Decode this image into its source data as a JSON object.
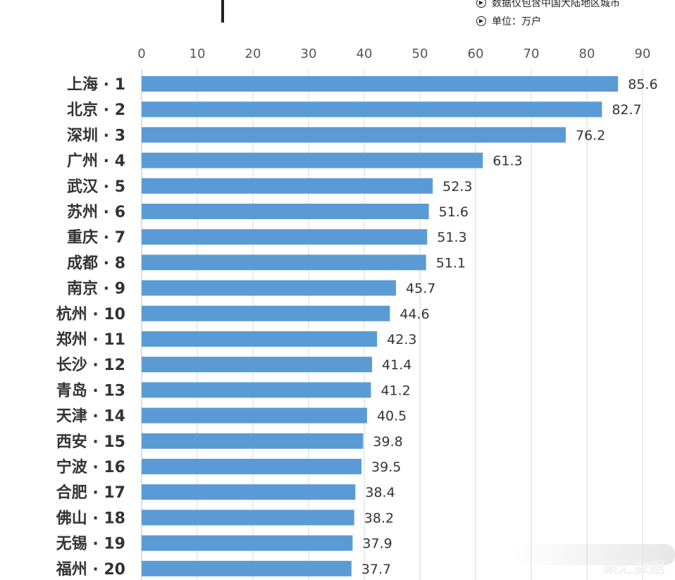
{
  "header": {
    "notes": [
      "数据仅包含中国大陆地区城市",
      "单位：万户"
    ],
    "bullet_icon": "chevron-right-circle-icon"
  },
  "watermark": {
    "text": "聚汇数据"
  },
  "chart_data": {
    "type": "bar",
    "orientation": "horizontal",
    "title": "",
    "xlabel": "",
    "ylabel": "",
    "xlim": [
      0,
      90
    ],
    "xticks": [
      0,
      10,
      20,
      30,
      40,
      50,
      60,
      70,
      80,
      90
    ],
    "grid": true,
    "axis_position": "top",
    "bar_color": "#5B9BD5",
    "categories": [
      "上海 · 1",
      "北京 · 2",
      "深圳 · 3",
      "广州 · 4",
      "武汉 · 5",
      "苏州 · 6",
      "重庆 · 7",
      "成都 · 8",
      "南京 · 9",
      "杭州 · 10",
      "郑州 · 11",
      "长沙 · 12",
      "青岛 · 13",
      "天津 · 14",
      "西安 · 15",
      "宁波 · 16",
      "合肥 · 17",
      "佛山 · 18",
      "无锡 · 19",
      "福州 · 20"
    ],
    "values": [
      85.6,
      82.7,
      76.2,
      61.3,
      52.3,
      51.6,
      51.3,
      51.1,
      45.7,
      44.6,
      42.3,
      41.4,
      41.2,
      40.5,
      39.8,
      39.5,
      38.4,
      38.2,
      37.9,
      37.7
    ]
  }
}
